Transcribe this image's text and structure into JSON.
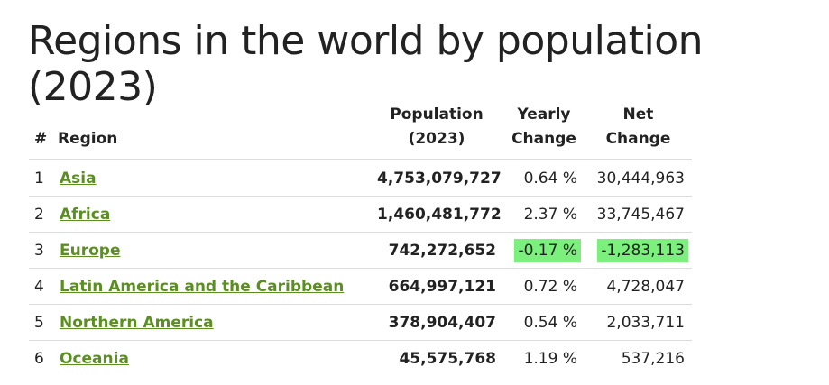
{
  "title": "Regions in the world by population (2023)",
  "table": {
    "headers": [
      "#",
      "Region",
      [
        "Population",
        "(2023)"
      ],
      [
        "Yearly",
        "Change"
      ],
      [
        "Net",
        "Change"
      ]
    ],
    "rows": [
      [
        "1",
        "Asia",
        "4,753,079,727",
        "0.64 %",
        "30,444,963"
      ],
      [
        "2",
        "Africa",
        "1,460,481,772",
        "2.37 %",
        "33,745,467"
      ],
      [
        "3",
        "Europe",
        "742,272,652",
        "-0.17 %",
        "-1,283,113"
      ],
      [
        "4",
        "Latin America and the Caribbean",
        "664,997,121",
        "0.72 %",
        "4,728,047"
      ],
      [
        "5",
        "Northern America",
        "378,904,407",
        "0.54 %",
        "2,033,711"
      ],
      [
        "6",
        "Oceania",
        "45,575,768",
        "1.19 %",
        "537,216"
      ]
    ],
    "highlighted_cells": [
      [
        2,
        3
      ],
      [
        2,
        4
      ]
    ],
    "highlight_color": "#7cf07c"
  }
}
